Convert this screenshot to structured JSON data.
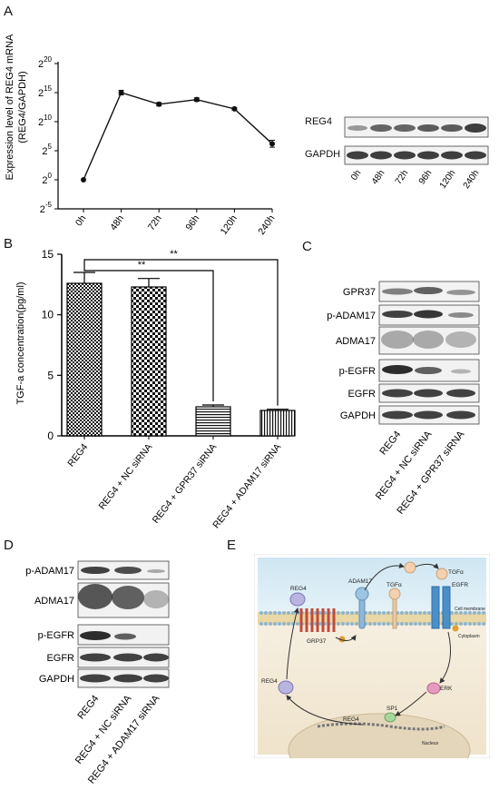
{
  "panels": {
    "a": "A",
    "b": "B",
    "c": "C",
    "d": "D",
    "e": "E"
  },
  "panel_a": {
    "ylabel_line1": "Expression level of REG4 mRNA",
    "ylabel_line2": "(REG4/GAPDH)",
    "y_ticks": [
      {
        "base": "2",
        "exp": "20"
      },
      {
        "base": "2",
        "exp": "15"
      },
      {
        "base": "2",
        "exp": "10"
      },
      {
        "base": "2",
        "exp": "5"
      },
      {
        "base": "2",
        "exp": "0"
      },
      {
        "base": "2",
        "exp": "-5"
      }
    ],
    "blot_rows": [
      "REG4",
      "GAPDH"
    ],
    "blot_lanes": [
      "0h",
      "48h",
      "72h",
      "96h",
      "120h",
      "240h"
    ]
  },
  "panel_b": {
    "ylabel": "TGF-a concentration(pg/ml)",
    "sig1": "**",
    "sig2": "**"
  },
  "panel_c": {
    "rows": [
      "GPR37",
      "p-ADAM17",
      "ADMA17",
      "p-EGFR",
      "EGFR",
      "GAPDH"
    ],
    "lanes": [
      "REG4",
      "REG4 + NC siRNA",
      "REG4 + GPR37 siRNA"
    ]
  },
  "panel_d": {
    "rows": [
      "p-ADAM17",
      "ADMA17",
      "p-EGFR",
      "EGFR",
      "GAPDH"
    ],
    "lanes": [
      "REG4",
      "REG4 + NC siRNA",
      "REG4 + ADAM17 siRNA"
    ]
  },
  "panel_e": {
    "labels": {
      "reg4_top": "REG4",
      "adam17": "ADAM17",
      "tgfa_mid": "TGFα",
      "tgfa_top": "TGFα",
      "egfr": "EGFR",
      "membrane": "Cell membrane",
      "cytoplasm": "Cytoplasm",
      "grp37": "GRP37",
      "reg4_left": "REG4",
      "erk": "ERK",
      "reg4_nuc": "REG4",
      "sp1": "SP1",
      "nucleus": "Nucleus"
    }
  },
  "chart_data": [
    {
      "type": "line",
      "ylabel": "Expression level of REG4 mRNA (REG4/GAPDH)",
      "yscale": "log2",
      "ylim_exponent": [
        -5,
        20
      ],
      "categories": [
        "0h",
        "48h",
        "72h",
        "96h",
        "120h",
        "240h"
      ],
      "values_log2": [
        0,
        15,
        13,
        13.8,
        12.2,
        6.2
      ],
      "error_log2": [
        0,
        0.4,
        0.3,
        0.3,
        0.2,
        0.6
      ]
    },
    {
      "type": "bar",
      "ylabel": "TGF-a concentration(pg/ml)",
      "ylim": [
        0,
        15
      ],
      "y_ticks": [
        "0",
        "5",
        "10",
        "15"
      ],
      "categories": [
        "REG4",
        "REG4 + NC siRNA",
        "REG4 + GPR37 siRNA",
        "REG4 + ADAM17 siRNA"
      ],
      "values": [
        12.6,
        12.3,
        2.4,
        2.1
      ],
      "errors": [
        0.9,
        0.7,
        0.15,
        0.1
      ],
      "significance": [
        {
          "from": "REG4",
          "to": "REG4 + GPR37 siRNA",
          "label": "**"
        },
        {
          "from": "REG4",
          "to": "REG4 + ADAM17 siRNA",
          "label": "**"
        }
      ]
    }
  ]
}
